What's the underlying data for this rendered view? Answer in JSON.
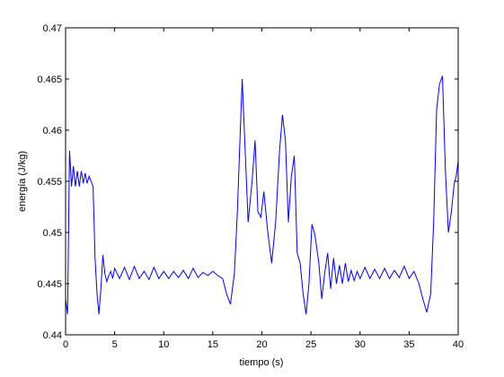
{
  "chart_data": {
    "type": "line",
    "title": "",
    "xlabel": "tiempo (s)",
    "ylabel": "energía (J/kg)",
    "xlim": [
      0,
      40
    ],
    "ylim": [
      0.44,
      0.47
    ],
    "xticks": [
      0,
      5,
      10,
      15,
      20,
      25,
      30,
      35,
      40
    ],
    "yticks": [
      0.44,
      0.445,
      0.45,
      0.455,
      0.46,
      0.465,
      0.47
    ],
    "xtick_labels": [
      "0",
      "5",
      "10",
      "15",
      "20",
      "25",
      "30",
      "35",
      "40"
    ],
    "ytick_labels": [
      "0.44",
      "0.445",
      "0.45",
      "0.455",
      "0.46",
      "0.465",
      "0.47"
    ],
    "grid": false,
    "series": [
      {
        "color": "#0000ff",
        "x": [
          0,
          0.2,
          0.4,
          0.6,
          0.8,
          1.0,
          1.2,
          1.4,
          1.6,
          1.8,
          2.0,
          2.2,
          2.4,
          2.6,
          2.8,
          3.0,
          3.2,
          3.4,
          3.6,
          3.8,
          4.0,
          4.2,
          4.4,
          4.6,
          4.8,
          5.0,
          5.5,
          6.0,
          6.5,
          7.0,
          7.5,
          8.0,
          8.5,
          9.0,
          9.5,
          10.0,
          10.5,
          11.0,
          11.5,
          12.0,
          12.5,
          13.0,
          13.5,
          14.0,
          14.5,
          15.0,
          15.5,
          16.0,
          16.4,
          16.8,
          17.2,
          17.5,
          17.8,
          18.0,
          18.3,
          18.6,
          19.0,
          19.3,
          19.6,
          19.9,
          20.2,
          20.6,
          21.0,
          21.4,
          21.8,
          22.1,
          22.4,
          22.7,
          23.0,
          23.3,
          23.6,
          23.9,
          24.2,
          24.5,
          24.8,
          25.1,
          25.4,
          25.8,
          26.1,
          26.4,
          26.7,
          27.0,
          27.3,
          27.6,
          27.9,
          28.2,
          28.5,
          28.8,
          29.1,
          29.4,
          29.7,
          30.0,
          30.5,
          31.0,
          31.5,
          32.0,
          32.5,
          33.0,
          33.5,
          34.0,
          34.5,
          35.0,
          35.5,
          36.0,
          36.4,
          36.8,
          37.2,
          37.5,
          37.8,
          38.1,
          38.4,
          38.7,
          39.0,
          39.3,
          39.6,
          39.8,
          40.0
        ],
        "y": [
          0.4435,
          0.442,
          0.458,
          0.4545,
          0.4565,
          0.4545,
          0.456,
          0.4545,
          0.456,
          0.4548,
          0.4558,
          0.4548,
          0.4555,
          0.455,
          0.4545,
          0.4475,
          0.444,
          0.442,
          0.4445,
          0.4478,
          0.446,
          0.4452,
          0.4458,
          0.4462,
          0.4455,
          0.4465,
          0.4455,
          0.4466,
          0.4454,
          0.4467,
          0.4455,
          0.4462,
          0.4454,
          0.4466,
          0.4455,
          0.4462,
          0.4455,
          0.4462,
          0.4456,
          0.4463,
          0.4455,
          0.4465,
          0.4456,
          0.4461,
          0.4458,
          0.4462,
          0.4458,
          0.4455,
          0.444,
          0.443,
          0.446,
          0.452,
          0.46,
          0.465,
          0.458,
          0.451,
          0.455,
          0.459,
          0.452,
          0.4515,
          0.454,
          0.45,
          0.447,
          0.451,
          0.458,
          0.4615,
          0.459,
          0.451,
          0.4555,
          0.4575,
          0.448,
          0.447,
          0.444,
          0.442,
          0.445,
          0.4508,
          0.4498,
          0.447,
          0.4435,
          0.446,
          0.448,
          0.4445,
          0.4475,
          0.445,
          0.4468,
          0.445,
          0.447,
          0.4452,
          0.4463,
          0.4453,
          0.4462,
          0.4455,
          0.4466,
          0.4455,
          0.4464,
          0.4455,
          0.4465,
          0.4455,
          0.4463,
          0.4456,
          0.4467,
          0.4455,
          0.4462,
          0.445,
          0.4435,
          0.4422,
          0.444,
          0.451,
          0.462,
          0.4645,
          0.4653,
          0.456,
          0.45,
          0.452,
          0.4548,
          0.4555,
          0.457
        ]
      }
    ]
  }
}
